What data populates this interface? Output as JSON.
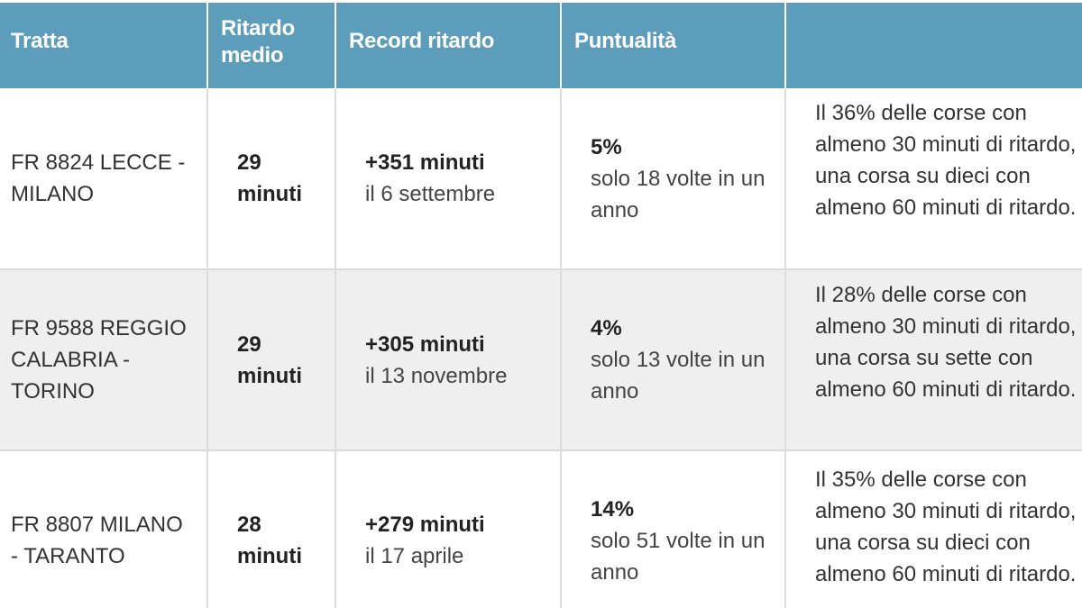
{
  "headers": {
    "tratta": "Tratta",
    "ritardo_medio": "Ritardo medio",
    "record_ritardo": "Record ritardo",
    "puntualita": "Puntualità",
    "note": ""
  },
  "rows": [
    {
      "tratta": "FR 8824 LECCE - MILANO",
      "ritardo_medio": "29 minuti",
      "record_value": "+351 minuti",
      "record_date": "il 6 settembre",
      "puntualita_pct": "5%",
      "puntualita_desc": "solo 18 volte in un anno",
      "note": "Il 36% delle corse con almeno 30 minuti di ritardo, una corsa su dieci con almeno 60 minuti di ritardo."
    },
    {
      "tratta": "FR 9588 REGGIO CALABRIA - TORINO",
      "ritardo_medio": "29 minuti",
      "record_value": "+305 minuti",
      "record_date": "il 13 novembre",
      "puntualita_pct": "4%",
      "puntualita_desc": "solo 13 volte in un anno",
      "note": "Il 28% delle corse con almeno 30 minuti di ritardo, una corsa su sette con almeno 60 minuti di ritardo."
    },
    {
      "tratta": "FR 8807 MILANO - TARANTO",
      "ritardo_medio": "28 minuti",
      "record_value": "+279 minuti",
      "record_date": "il 17 aprile",
      "puntualita_pct": "14%",
      "puntualita_desc": "solo 51 volte in un anno",
      "note": "Il 35% delle corse con almeno 30 minuti di ritardo, una corsa su dieci con almeno 60 minuti di ritardo."
    }
  ]
}
